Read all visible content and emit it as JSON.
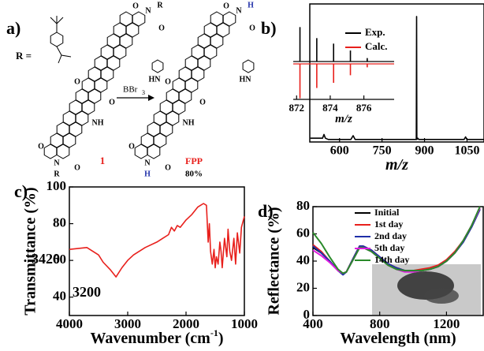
{
  "scheme": {
    "label": "a)",
    "r_label": "R =",
    "reagent": "BBr",
    "reagent_sub": "3",
    "compound_1": "1",
    "product": "FPP",
    "yield": "80%",
    "molecule_1_atoms": [
      "N",
      "R",
      "O",
      "O",
      "HN",
      "O",
      "O",
      "NH",
      "O",
      "N",
      "R",
      "O"
    ],
    "product_atoms": [
      "N",
      "H",
      "O",
      "O",
      "HN",
      "O",
      "O",
      "NH",
      "O",
      "N",
      "H",
      "O"
    ]
  },
  "chart_data": [
    {
      "type": "line",
      "panel_label": "b)",
      "xlabel": "m/z",
      "xlim": [
        495,
        1110
      ],
      "ylim": [
        0,
        110
      ],
      "xticks": [
        600,
        750,
        900,
        1050
      ],
      "x": [
        497,
        520,
        540,
        545,
        550,
        560,
        600,
        640,
        648,
        655,
        700,
        750,
        800,
        850,
        868,
        871,
        872,
        873,
        876,
        880,
        900,
        950,
        1000,
        1040,
        1045,
        1050,
        1060,
        1110
      ],
      "series": [
        {
          "color": "#000000",
          "values": [
            3,
            3,
            3,
            6,
            3,
            2,
            2,
            2,
            5,
            2,
            2,
            2,
            2,
            2,
            2,
            2,
            100,
            2,
            3,
            2,
            2,
            2,
            2,
            2,
            4,
            2,
            2,
            2
          ]
        }
      ]
    },
    {
      "type": "bar",
      "xlabel": "m/z",
      "xlim": [
        871.8,
        877.8
      ],
      "ylim": [
        -110,
        110
      ],
      "xticks": [
        872,
        874,
        876
      ],
      "legend": "upper right",
      "x": [
        872.2,
        873.2,
        874.2,
        875.2,
        876.2
      ],
      "series": [
        {
          "name": "Exp.",
          "color": "#000000",
          "values": [
            100,
            68,
            52,
            32,
            10
          ]
        },
        {
          "name": "Calc.",
          "color": "#e8201c",
          "values": [
            -100,
            -70,
            -55,
            -33,
            -10
          ]
        }
      ]
    },
    {
      "type": "line",
      "panel_label": "c)",
      "xlabel": "Wavenumber (cm",
      "xlabel_sup": "-1",
      "xlabel_end": ")",
      "ylabel": "Transmittance (%)",
      "xlim": [
        4000,
        1000
      ],
      "ylim": [
        30,
        100
      ],
      "xticks": [
        4000,
        3000,
        2000,
        1000
      ],
      "yticks": [
        40,
        60,
        80,
        100
      ],
      "annotations": [
        "3420",
        "3200"
      ],
      "x": [
        4000,
        3700,
        3500,
        3420,
        3300,
        3200,
        3100,
        3000,
        2900,
        2700,
        2500,
        2400,
        2300,
        2250,
        2200,
        2150,
        2100,
        2000,
        1900,
        1800,
        1700,
        1650,
        1620,
        1600,
        1580,
        1550,
        1520,
        1500,
        1480,
        1450,
        1420,
        1400,
        1380,
        1340,
        1300,
        1280,
        1250,
        1220,
        1180,
        1150,
        1120,
        1080,
        1050,
        1000
      ],
      "series": [
        {
          "color": "#e8201c",
          "values": [
            66,
            67,
            63,
            59,
            55,
            51,
            56,
            60,
            63,
            67,
            70,
            72,
            74,
            78,
            76,
            79,
            78,
            82,
            85,
            89,
            91,
            90,
            70,
            80,
            65,
            58,
            66,
            56,
            62,
            58,
            70,
            65,
            56,
            72,
            62,
            77,
            65,
            60,
            72,
            58,
            75,
            64,
            78,
            84
          ]
        }
      ]
    },
    {
      "type": "line",
      "panel_label": "d)",
      "xlabel": "Wavelength (nm)",
      "ylabel": "Reflectance (%)",
      "xlim": [
        400,
        1420
      ],
      "ylim": [
        0,
        80
      ],
      "xticks": [
        400,
        800,
        1200
      ],
      "yticks": [
        0,
        20,
        40,
        60,
        80
      ],
      "legend": "upper center",
      "x": [
        400,
        450,
        500,
        550,
        580,
        600,
        650,
        680,
        700,
        750,
        800,
        850,
        900,
        950,
        1000,
        1050,
        1100,
        1150,
        1200,
        1250,
        1300,
        1350,
        1400
      ],
      "series": [
        {
          "name": "Initial",
          "color": "#000000",
          "values": [
            50,
            46,
            40,
            33,
            31,
            32,
            44,
            51,
            51,
            48,
            43,
            38,
            35,
            33,
            33,
            33,
            34,
            36,
            40,
            46,
            54,
            65,
            78
          ]
        },
        {
          "name": "1st day",
          "color": "#e8201c",
          "values": [
            52,
            47,
            40,
            33,
            31,
            32,
            44,
            51,
            51,
            48,
            43,
            38,
            35,
            33,
            33,
            34,
            35,
            37,
            41,
            47,
            55,
            66,
            79
          ]
        },
        {
          "name": "2nd day",
          "color": "#1f2fa8",
          "values": [
            51,
            46,
            40,
            33,
            30,
            32,
            44,
            51,
            51,
            48,
            43,
            38,
            35,
            33,
            33,
            33,
            34,
            36,
            40,
            46,
            54,
            65,
            78
          ]
        },
        {
          "name": "5th day",
          "color": "#e01ee0",
          "values": [
            48,
            44,
            39,
            33,
            31,
            32,
            43,
            50,
            50,
            47,
            42,
            37,
            34,
            32,
            32,
            33,
            34,
            36,
            40,
            46,
            55,
            66,
            79
          ]
        },
        {
          "name": "14th day",
          "color": "#2a8a2a",
          "values": [
            61,
            53,
            43,
            34,
            31,
            32,
            43,
            50,
            50,
            47,
            42,
            37,
            34,
            33,
            33,
            33,
            34,
            36,
            40,
            46,
            55,
            66,
            80
          ]
        }
      ]
    }
  ]
}
